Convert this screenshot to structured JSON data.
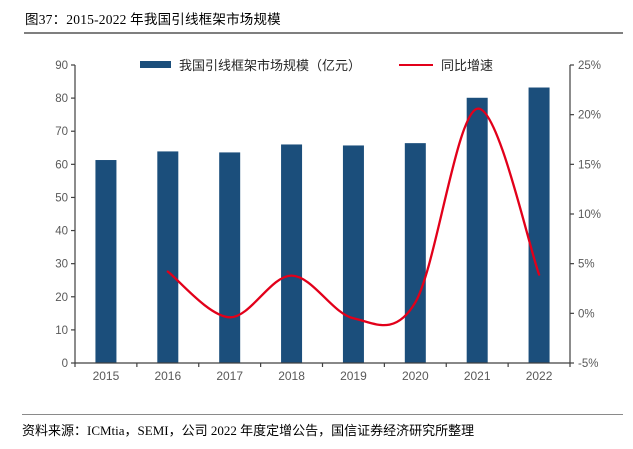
{
  "header": {
    "title": "图37：2015-2022 年我国引线框架市场规模"
  },
  "chart_data": {
    "type": "bar",
    "title": "2015-2022 年我国引线框架市场规模",
    "categories": [
      "2015",
      "2016",
      "2017",
      "2018",
      "2019",
      "2020",
      "2021",
      "2022"
    ],
    "series": [
      {
        "name": "我国引线框架市场规模（亿元）",
        "type": "bar",
        "axis": "left",
        "values": [
          61.3,
          63.9,
          63.6,
          66.0,
          65.7,
          66.4,
          80.1,
          83.2
        ]
      },
      {
        "name": "同比增速",
        "type": "line",
        "axis": "right",
        "values": [
          null,
          4.2,
          -0.4,
          3.8,
          -0.5,
          1.1,
          20.6,
          3.9
        ]
      }
    ],
    "left_axis": {
      "min": 0,
      "max": 90,
      "step": 10,
      "labels": [
        "0",
        "10",
        "20",
        "30",
        "40",
        "50",
        "60",
        "70",
        "80",
        "90"
      ]
    },
    "right_axis": {
      "min": -5,
      "max": 25,
      "step": 5,
      "labels": [
        "-5%",
        "0%",
        "5%",
        "10%",
        "15%",
        "20%",
        "25%"
      ]
    },
    "legend_position": "top-center",
    "grid": false
  },
  "colors": {
    "bar": "#1B4E7B",
    "line": "#E2001A",
    "axis_line": "#404040",
    "axis_text": "#595959",
    "divider": "#7F7F7F",
    "title_text": "#000000"
  },
  "footer": {
    "source": "资料来源：ICMtia，SEMI，公司 2022 年度定增公告，国信证券经济研究所整理"
  }
}
